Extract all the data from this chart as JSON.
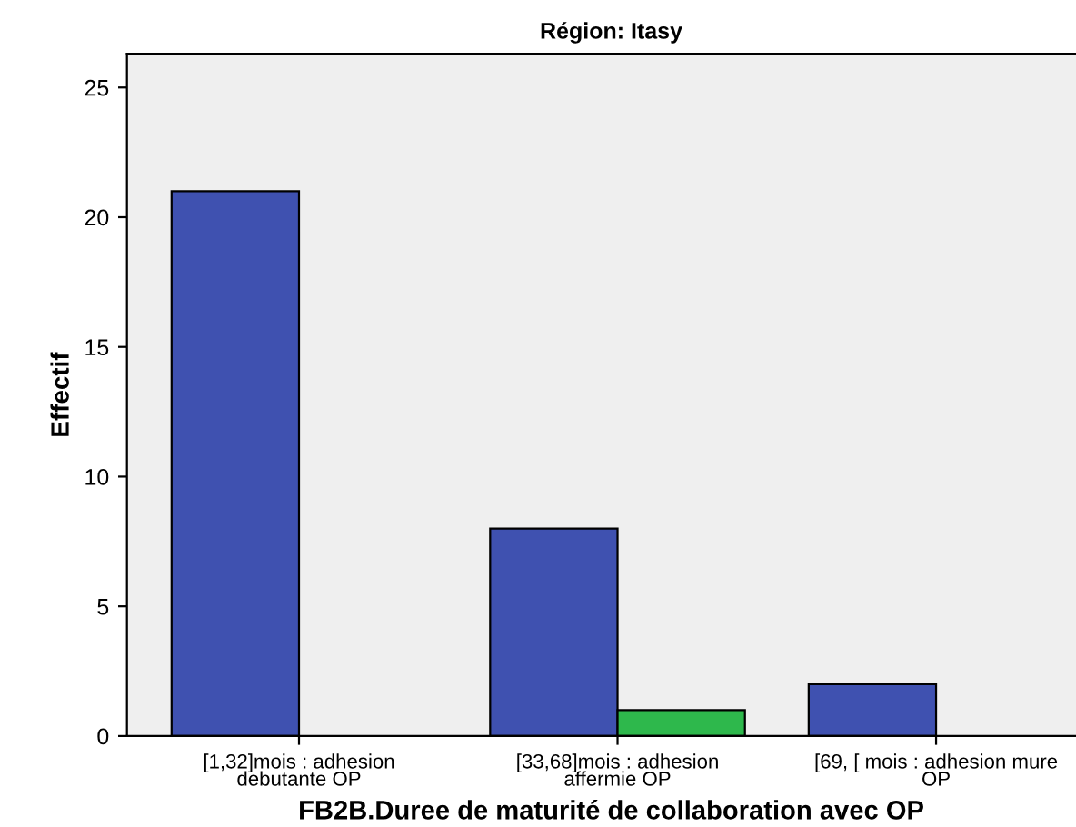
{
  "chart_data": {
    "type": "bar",
    "title": "Région: Itasy",
    "xlabel": "FB2B.Duree de maturité de collaboration avec OP",
    "ylabel": "Effectif",
    "categories": [
      "[1,32]mois : adhesion\ndebutante OP",
      "[33,68]mois : adhesion\naffermie OP",
      "[69, [ mois : adhesion mure\nOP"
    ],
    "series": [
      {
        "color": "#3f51b0",
        "values": [
          21,
          8,
          2
        ]
      },
      {
        "color": "#2eb84c",
        "values": [
          null,
          1,
          null
        ]
      }
    ],
    "ylim": [
      0,
      26.3
    ],
    "yticks": [
      0,
      5,
      10,
      15,
      20,
      25
    ],
    "grid": false,
    "legend": false
  }
}
